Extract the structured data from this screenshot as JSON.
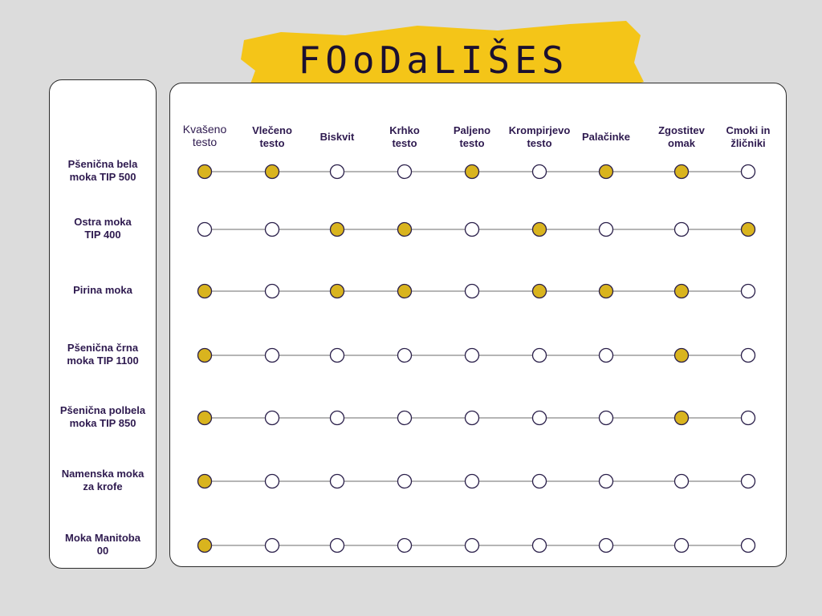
{
  "title": "FOoDaLIŠES",
  "colors": {
    "filled": "#d9b41e",
    "empty": "#ffffff",
    "stroke": "#2a1f4a",
    "accent": "#f4c518"
  },
  "columns": [
    [
      "Kvašeno",
      "testo"
    ],
    [
      "Vlečeno",
      "testo"
    ],
    [
      "Biskvit"
    ],
    [
      "Krhko",
      "testo"
    ],
    [
      "Paljeno",
      "testo"
    ],
    [
      "Krompirjevo",
      "testo"
    ],
    [
      "Palačinke"
    ],
    [
      "Zgostitev",
      "omak"
    ],
    [
      "Cmoki in",
      "žličniki"
    ]
  ],
  "rows": [
    [
      "Pšenična bela",
      "moka TIP 500"
    ],
    [
      "Ostra moka",
      "TIP 400"
    ],
    [
      "Pirina moka"
    ],
    [
      "Pšenična črna",
      "moka TIP 1100"
    ],
    [
      "Pšenična polbela",
      "moka TIP 850"
    ],
    [
      "Namenska moka",
      "za krofe"
    ],
    [
      "Moka Manitoba",
      "00"
    ]
  ],
  "matrix": [
    [
      1,
      1,
      0,
      0,
      1,
      0,
      1,
      1,
      0
    ],
    [
      0,
      0,
      1,
      1,
      0,
      1,
      0,
      0,
      1
    ],
    [
      1,
      0,
      1,
      1,
      0,
      1,
      1,
      1,
      0
    ],
    [
      1,
      0,
      0,
      0,
      0,
      0,
      0,
      1,
      0
    ],
    [
      1,
      0,
      0,
      0,
      0,
      0,
      0,
      1,
      0
    ],
    [
      1,
      0,
      0,
      0,
      0,
      0,
      0,
      0,
      0
    ],
    [
      1,
      0,
      0,
      0,
      0,
      0,
      0,
      0,
      0
    ]
  ]
}
